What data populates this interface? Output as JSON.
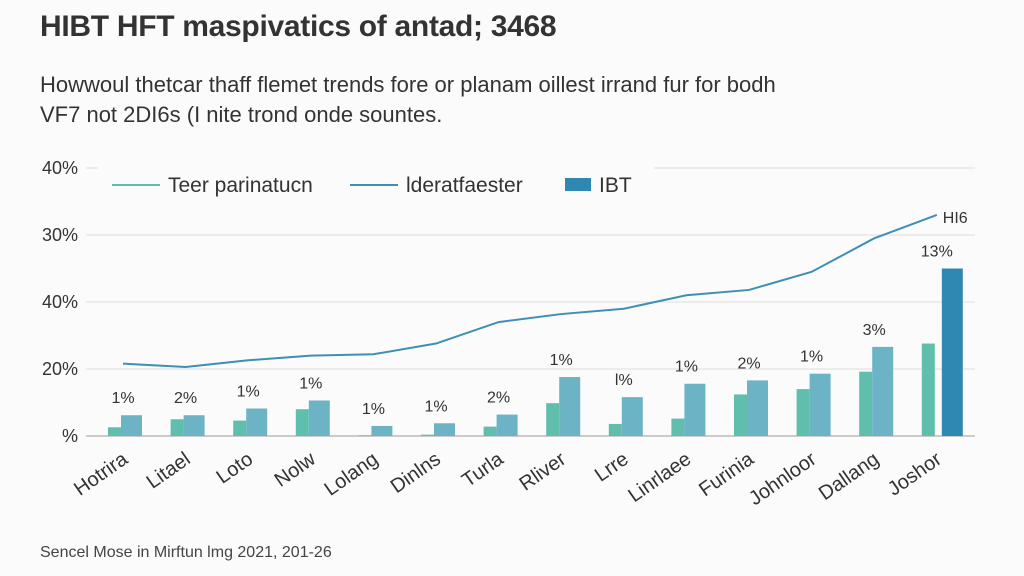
{
  "title": "HIBT HFT maspivatics of antad; 3468",
  "subtitle": "Howwoul thetcar thaff flemet trends fore or planam oillest irrand fur for bodh VF7 not 2DI6s (I nite trond onde sountes.",
  "source": "Sencel Mose in Mirftun lmg 2021, 201-26",
  "colors": {
    "teal": "#5fbfac",
    "bar2": "#6db3c6",
    "line": "#3f8fb4",
    "highlight": "#2f88b2",
    "grid": "#dddddd",
    "axis": "#bbbbbb"
  },
  "chart_data": {
    "type": "bar",
    "title": "HIBT HFT maspivatics of antad; 3468",
    "y_tick_labels": [
      "%",
      "20%",
      "40%",
      "30%",
      "40%"
    ],
    "y_tick_values": [
      0,
      1,
      2,
      3,
      4
    ],
    "ylim": [
      0,
      4
    ],
    "grid": true,
    "legend_position": "top",
    "legend": [
      {
        "label": "Teer parinatucn",
        "kind": "line",
        "color": "#5fbfac"
      },
      {
        "label": "lderatfaester",
        "kind": "line",
        "color": "#3f8fb4"
      },
      {
        "label": "IBT",
        "kind": "bar",
        "color": "#2f88b2"
      }
    ],
    "categories": [
      "Hotrira",
      "Litael",
      "Loto",
      "Nolw",
      "Lolang",
      "Dinlns",
      "Turla",
      "Rliver",
      "Lrre",
      "Linrlaee",
      "Furinia",
      "Johnloor",
      "Dallang",
      "Joshor"
    ],
    "series": [
      {
        "name": "Teer parinatucn",
        "type": "bar",
        "values": [
          0.13,
          0.25,
          0.23,
          0.4,
          0.01,
          0.02,
          0.14,
          0.49,
          0.18,
          0.26,
          0.62,
          0.7,
          0.96,
          1.38
        ]
      },
      {
        "name": "",
        "type": "bar",
        "values": [
          0.31,
          0.31,
          0.41,
          0.53,
          0.15,
          0.19,
          0.32,
          0.88,
          0.58,
          0.78,
          0.83,
          0.93,
          1.33,
          1.38
        ]
      },
      {
        "name": "lderatfaester",
        "type": "line",
        "values": [
          1.08,
          1.03,
          1.13,
          1.2,
          1.22,
          1.38,
          1.7,
          1.82,
          1.9,
          2.1,
          2.18,
          2.45,
          2.95,
          3.3
        ]
      },
      {
        "name": "IBT",
        "type": "bar",
        "values": [
          null,
          null,
          null,
          null,
          null,
          null,
          null,
          null,
          null,
          null,
          null,
          null,
          null,
          2.5
        ]
      }
    ],
    "data_labels": [
      "1%",
      "2%",
      "1%",
      "1%",
      "1%",
      "1%",
      "2%",
      "1%",
      "l%",
      "1%",
      "2%",
      "1%",
      "3%",
      "13%"
    ],
    "line_end_label": "HI6"
  }
}
